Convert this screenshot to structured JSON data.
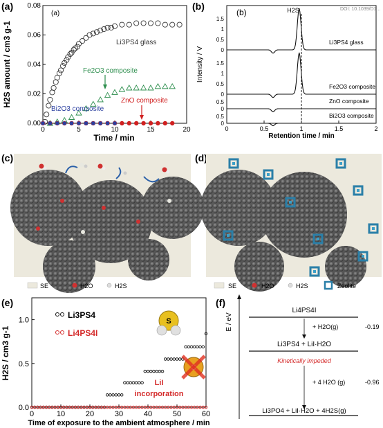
{
  "panels": {
    "a": "(a)",
    "b": "(b)",
    "c": "(c)",
    "d": "(d)",
    "e": "(e)",
    "f": "(f)"
  },
  "chart_data": [
    {
      "type": "scatter",
      "panel_label": "(a)",
      "inner_label": "(a)",
      "xlabel": "Time / min",
      "ylabel": "H2S amount / cm3 g-1",
      "xlim": [
        0,
        20
      ],
      "ylim": [
        0,
        0.08
      ],
      "xticks": [
        "0",
        "5",
        "10",
        "15",
        "20"
      ],
      "yticks": [
        "0.00",
        "0.02",
        "0.04",
        "0.06",
        "0.08"
      ],
      "annotations": [
        "Li3PS4 glass",
        "Fe2O3 composite",
        "ZnO composite",
        "Bi2O3 composite"
      ],
      "colors": {
        "Li3PS4 glass": "#333333",
        "Fe2O3 composite": "#2f8f4f",
        "ZnO composite": "#d02020",
        "Bi2O3 composite": "#2a3f9f"
      },
      "series": [
        {
          "name": "Li3PS4 glass",
          "marker": "open-circle",
          "x": [
            0.3,
            0.5,
            0.8,
            1.0,
            1.3,
            1.5,
            1.8,
            2.0,
            2.3,
            2.5,
            2.8,
            3.0,
            3.3,
            3.5,
            3.8,
            4.0,
            4.3,
            4.5,
            4.8,
            5.0,
            5.5,
            6.0,
            6.5,
            7.0,
            7.5,
            8.0,
            8.5,
            9.0,
            9.5,
            10.0,
            11.0,
            12.0,
            13.0,
            14.0,
            15.0,
            16.0,
            17.0,
            18.0,
            19.0
          ],
          "y": [
            0.001,
            0.006,
            0.012,
            0.016,
            0.021,
            0.024,
            0.028,
            0.031,
            0.034,
            0.036,
            0.039,
            0.041,
            0.043,
            0.045,
            0.047,
            0.048,
            0.05,
            0.051,
            0.052,
            0.054,
            0.056,
            0.058,
            0.06,
            0.061,
            0.062,
            0.063,
            0.064,
            0.065,
            0.065,
            0.066,
            0.067,
            0.067,
            0.068,
            0.068,
            0.068,
            0.068,
            0.067,
            0.067,
            0.067
          ]
        },
        {
          "name": "Fe2O3 composite",
          "marker": "open-triangle",
          "x": [
            1,
            2,
            3,
            4,
            5,
            6,
            7,
            8,
            9,
            10,
            11,
            12,
            13,
            14,
            15,
            16,
            17,
            18
          ],
          "y": [
            0.0,
            0.001,
            0.002,
            0.004,
            0.007,
            0.01,
            0.013,
            0.016,
            0.019,
            0.021,
            0.023,
            0.024,
            0.024,
            0.024,
            0.024,
            0.025,
            0.025,
            0.025
          ]
        },
        {
          "name": "ZnO composite",
          "marker": "filled-circle",
          "x": [
            0,
            1,
            2,
            3,
            4,
            5,
            6,
            7,
            8,
            9,
            10,
            11,
            12,
            13,
            14,
            15,
            16,
            17,
            18
          ],
          "y": [
            0,
            0,
            0,
            0,
            0,
            0,
            0,
            0,
            0,
            0,
            0,
            0,
            0,
            0,
            0,
            0,
            0,
            0,
            0
          ]
        },
        {
          "name": "Bi2O3 composite",
          "marker": "filled-square",
          "x": [
            0,
            1,
            2,
            3,
            4,
            5,
            6,
            7,
            8,
            9,
            10
          ],
          "y": [
            0,
            0,
            0,
            0,
            0,
            0,
            0,
            0,
            0,
            0,
            0
          ]
        }
      ]
    },
    {
      "type": "line",
      "panel_label": "(b)",
      "inner_label": "(b)",
      "xlabel": "Retention time / min",
      "ylabel": "Intensity / V",
      "xlim": [
        0,
        2
      ],
      "xticks": [
        "0",
        "0.5",
        "1",
        "1.5",
        "2"
      ],
      "peak_label": "H2S",
      "dashed_line_x": 1.0,
      "doi": "DOI: 10.1039/D1...",
      "series": [
        {
          "name": "Li3PS4 glass",
          "offset": 3,
          "yticks": [
            "0",
            "0.5",
            "1",
            "1.5"
          ],
          "peak": 1.0,
          "dip": 0.08
        },
        {
          "name": "Fe2O3 composite",
          "offset": 2,
          "yticks": [
            "0",
            "0.5",
            "1",
            "1.5"
          ],
          "peak": 1.0,
          "dip": 0.08
        },
        {
          "name": "ZnO composite",
          "offset": 1,
          "yticks": [
            "0",
            "0.5"
          ],
          "peak": 0.0,
          "dip": 0.15
        },
        {
          "name": "Bi2O3 composite",
          "offset": 0,
          "yticks": [
            "0",
            "0.5"
          ],
          "peak": 0.0,
          "dip": 0.12
        }
      ]
    },
    {
      "type": "scatter",
      "panel_label": "(e)",
      "xlabel": "Time of exposure to the ambient atmosphere / min",
      "ylabel": "H2S / cm3 g-1",
      "xlim": [
        0,
        60
      ],
      "ylim": [
        0,
        1.25
      ],
      "xticks": [
        "0",
        "10",
        "20",
        "30",
        "40",
        "50",
        "60"
      ],
      "yticks": [
        "0.0",
        "0.5",
        "1.0"
      ],
      "annotations": [
        "LiI",
        "incorporation"
      ],
      "series": [
        {
          "name": "Li3PS4",
          "color": "#111111",
          "x": [
            0,
            1,
            2,
            3,
            4,
            5,
            6,
            7,
            8,
            9,
            10,
            11,
            12,
            13,
            14,
            15,
            16,
            17,
            18,
            19,
            20,
            21,
            22,
            23,
            24,
            25,
            26,
            27,
            28,
            29,
            30,
            31,
            32,
            33,
            34,
            35,
            36,
            37,
            38,
            39,
            40,
            41,
            42,
            43,
            44,
            45,
            46,
            47,
            48,
            49,
            50,
            51,
            52,
            53,
            54,
            55,
            56,
            57,
            58,
            59,
            60
          ],
          "y": [
            0,
            0,
            0,
            0,
            0,
            0,
            0,
            0,
            0,
            0,
            0,
            0,
            0,
            0,
            0,
            0,
            0,
            0,
            0,
            0,
            0,
            0,
            0,
            0,
            0,
            0,
            0.14,
            0.14,
            0.14,
            0.14,
            0.14,
            0.14,
            0.28,
            0.28,
            0.28,
            0.28,
            0.28,
            0.28,
            0.28,
            0.41,
            0.41,
            0.41,
            0.41,
            0.41,
            0.41,
            0.41,
            0.55,
            0.55,
            0.55,
            0.55,
            0.55,
            0.55,
            0.55,
            0.69,
            0.69,
            0.69,
            0.69,
            0.69,
            0.69,
            0.69,
            0.84
          ]
        },
        {
          "name": "Li4PS4I",
          "color": "#d42a2a",
          "x": [
            0,
            1,
            2,
            3,
            4,
            5,
            6,
            7,
            8,
            9,
            10,
            11,
            12,
            13,
            14,
            15,
            16,
            17,
            18,
            19,
            20,
            21,
            22,
            23,
            24,
            25,
            26,
            27,
            28,
            29,
            30,
            31,
            32,
            33,
            34,
            35,
            36,
            37,
            38,
            39,
            40,
            41,
            42,
            43,
            44,
            45,
            46,
            47,
            48,
            49,
            50,
            51,
            52,
            53,
            54,
            55,
            56,
            57,
            58,
            59,
            60
          ],
          "y": [
            0,
            0,
            0,
            0,
            0,
            0,
            0,
            0,
            0,
            0,
            0,
            0,
            0,
            0,
            0,
            0,
            0,
            0,
            0,
            0,
            0,
            0,
            0,
            0,
            0,
            0,
            0,
            0,
            0,
            0,
            0,
            0,
            0,
            0,
            0,
            0,
            0,
            0,
            0,
            0,
            0,
            0,
            0,
            0,
            0,
            0,
            0,
            0,
            0,
            0,
            0,
            0,
            0,
            0,
            0,
            0,
            0,
            0,
            0,
            0,
            0
          ]
        }
      ]
    }
  ],
  "panel_c": {
    "legend": [
      "SE",
      "H2O",
      "H2S"
    ]
  },
  "panel_d": {
    "legend": [
      "SE",
      "H2O",
      "H2S",
      "Zeolite"
    ]
  },
  "panel_f": {
    "axis_label": "E / eV",
    "levels": [
      {
        "text": "Li4PS4I"
      },
      {
        "text": "Li3PS4 + LiI·H2O"
      },
      {
        "text": "Li3PO4 + LiI·H2O + 4H2S(g)"
      }
    ],
    "steps": [
      {
        "label": "+ H2O(g)",
        "energy": "-0.19"
      },
      {
        "label": "+ 4 H2O (g)",
        "energy": "-0.96"
      }
    ],
    "note": "Kinetically impeded"
  }
}
